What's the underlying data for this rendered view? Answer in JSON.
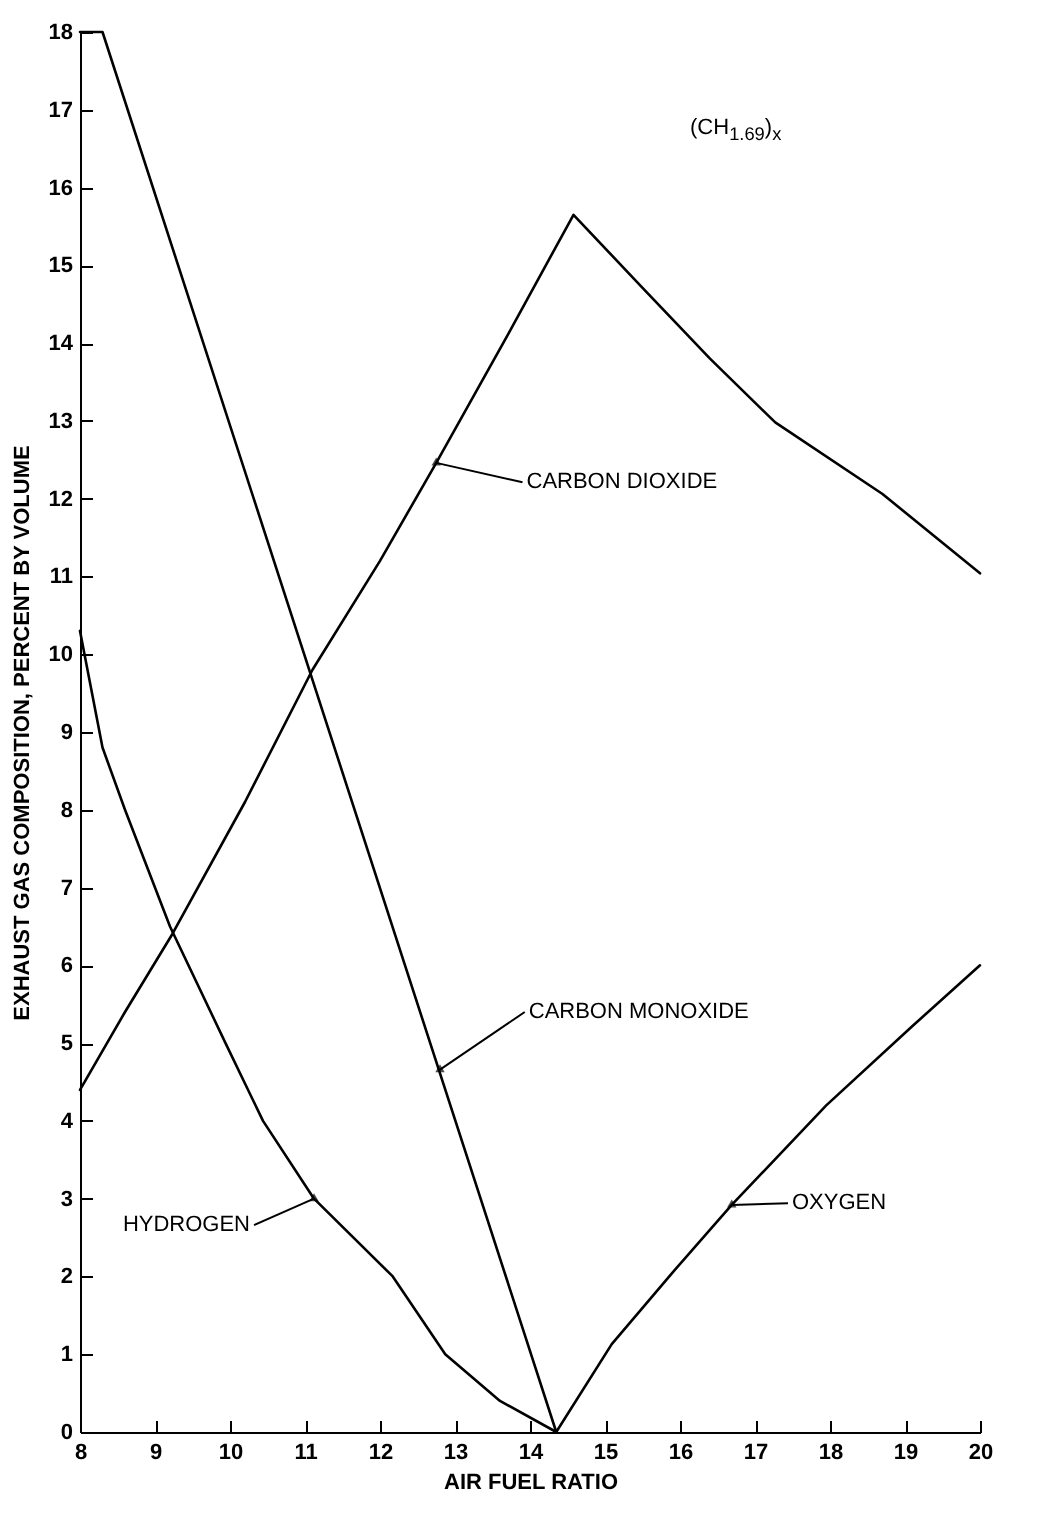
{
  "chart_data": {
    "type": "line",
    "title": "(CH$_{1.69}$)$_{x}$",
    "xlabel": "AIR FUEL RATIO",
    "ylabel": "EXHAUST GAS COMPOSITION, PERCENT BY VOLUME",
    "xlim": [
      8,
      20
    ],
    "ylim": [
      0,
      18
    ],
    "xticks": [
      8,
      9,
      10,
      11,
      12,
      13,
      14,
      15,
      16,
      17,
      18,
      19,
      20
    ],
    "yticks": [
      0,
      1,
      2,
      3,
      4,
      5,
      6,
      7,
      8,
      9,
      10,
      11,
      12,
      13,
      14,
      15,
      16,
      17,
      18
    ],
    "grid": false,
    "marker": "none",
    "series": [
      {
        "color": "#000000",
        "x": [
          8,
          8.3,
          14.35
        ],
        "values": [
          18,
          18,
          0
        ]
      },
      {
        "color": "#000000",
        "x": [
          8,
          8.6,
          9.23,
          10.2,
          11.1,
          12,
          12.75,
          13.7,
          14.58,
          15.51,
          16.4,
          17.27,
          18.7,
          20
        ],
        "values": [
          4.4,
          5.4,
          6.4,
          8.1,
          9.8,
          11.2,
          12.46,
          14.1,
          15.65,
          14.7,
          13.8,
          12.98,
          12.06,
          11.04
        ]
      },
      {
        "color": "#000000",
        "x": [
          8,
          8.3,
          8.6,
          9.2,
          9.94,
          10.44,
          11.12,
          12.17,
          12.87,
          13.6,
          14.35
        ],
        "values": [
          10.3,
          8.8,
          8.0,
          6.5,
          5.0,
          4.0,
          3.0,
          2.0,
          1.0,
          0.4,
          0
        ]
      },
      {
        "color": "#000000",
        "x": [
          14.35,
          15.09,
          15.9,
          16.69,
          17.95,
          19.1,
          20
        ],
        "values": [
          0,
          1.13,
          2.05,
          2.92,
          4.2,
          5.22,
          6.0
        ]
      }
    ],
    "annotations": [
      {
        "text": "CARBON DIOXIDE",
        "x": 12.75,
        "y": 12.46
      },
      {
        "text": "CARBON MONOXIDE",
        "x": 12.8,
        "y": 4.66
      },
      {
        "text": "HYDROGEN",
        "x": 11.12,
        "y": 3.0
      },
      {
        "text": "OXYGEN",
        "x": 16.69,
        "y": 2.92
      }
    ]
  }
}
